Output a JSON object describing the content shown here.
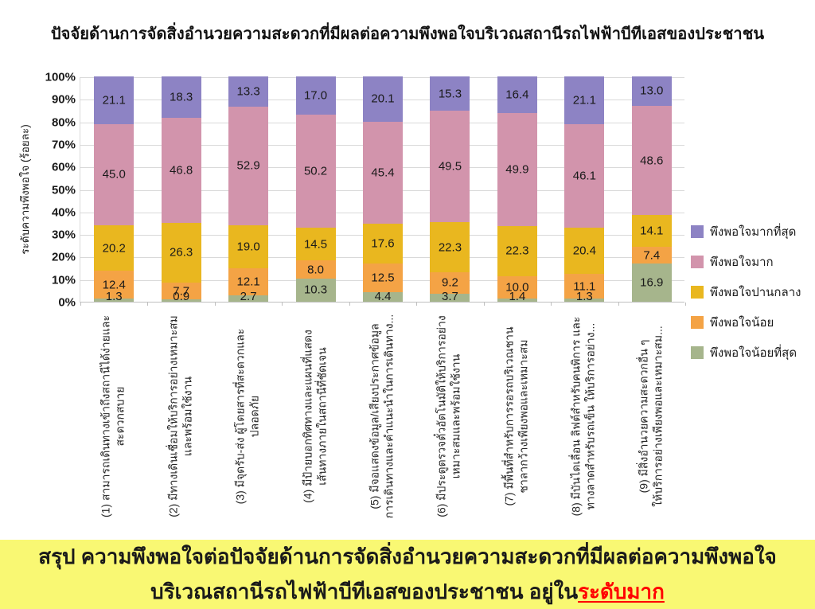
{
  "title": "ปัจจัยด้านการจัดสิ่งอำนวยความสะดวกที่มีผลต่อความพึงพอใจบริเวณสถานีรถไฟฟ้าบีทีเอสของประชาชน",
  "chart_data": {
    "type": "bar",
    "stacked": true,
    "title": "ปัจจัยด้านการจัดสิ่งอำนวยความสะดวกที่มีผลต่อความพึงพอใจบริเวณสถานีรถไฟฟ้าบีทีเอสของประชาชน",
    "ylabel": "ระดับความพึงพอใจ (ร้อยละ)",
    "xlabel": "",
    "ylim": [
      0,
      100
    ],
    "grid": true,
    "legend_position": "right",
    "y_ticks": [
      "100%",
      "90%",
      "80%",
      "70%",
      "60%",
      "50%",
      "40%",
      "30%",
      "20%",
      "10%",
      "0%"
    ],
    "categories": [
      "(1) สามารถเดินทางเข้าถึงสถานีได้ง่ายและ\nสะดวกสบาย",
      "(2) มีทางเดินเชื่อมให้บริการอย่างเหมาะสม\nและพร้อมใช้งาน",
      "(3) มีจุดรับ-ส่ง ผู้โดยสารที่สะดวกและ\nปลอดภัย",
      "(4) มีป้ายบอกทิศทางและแผนที่แสดง\nเส้นทางภายในสถานีที่ชัดเจน",
      "(5) มีจอแสดงข้อมูล/เสียงประกาศข้อมูล\nการเดินทางและคำแนะนำในการเดินทาง...",
      "(6) มีประตูตรวจตั๋วอัตโนมัติให้บริการอย่าง\nเหมาะสมและพร้อมใช้งาน",
      "(7) มีพื้นที่สำหรับการรอรถบริเวณชาน\nชาลากว้างเพียงพอและเหมาะสม",
      "(8) มีบันไดเลื่อน ลิฟต์สำหรับคนพิการ และ\nทางลาดสำหรับรถเข็น ให้บริการอย่าง...",
      "(9) มีสิ่งอำนวยความสะดวกอื่น ๆ\nให้บริการอย่างเพียงพอและเหมาะสม..."
    ],
    "series": [
      {
        "name": "พึงพอใจมากที่สุด",
        "color": "#8d83c4",
        "values": [
          21.1,
          18.3,
          13.3,
          17.0,
          20.1,
          15.3,
          16.4,
          21.1,
          13.0
        ]
      },
      {
        "name": "พึงพอใจมาก",
        "color": "#d294ac",
        "values": [
          45.0,
          46.8,
          52.9,
          50.2,
          45.4,
          49.5,
          49.9,
          46.1,
          48.6
        ]
      },
      {
        "name": "พึงพอใจปานกลาง",
        "color": "#e9b71f",
        "values": [
          20.2,
          26.3,
          19.0,
          14.5,
          17.6,
          22.3,
          22.3,
          20.4,
          14.1
        ]
      },
      {
        "name": "พึงพอใจน้อย",
        "color": "#f4a345",
        "values": [
          12.4,
          7.7,
          12.1,
          8.0,
          12.5,
          9.2,
          10.0,
          11.1,
          7.4
        ]
      },
      {
        "name": "พึงพอใจน้อยที่สุด",
        "color": "#a6b58c",
        "values": [
          1.3,
          0.9,
          2.7,
          10.3,
          4.4,
          3.7,
          1.4,
          1.3,
          16.9
        ]
      }
    ],
    "colors": {
      "gridline": "#d9d9d9",
      "axis": "#bfbfbf"
    }
  },
  "banner": {
    "background": "#f9f873",
    "highlight_color": "#ff0000",
    "line1": "สรุป ความพึงพอใจต่อปัจจัยด้านการจัดสิ่งอำนวยความสะดวกที่มีผลต่อความพึงพอใจ",
    "line2_prefix": "บริเวณสถานีรถไฟฟ้าบีทีเอสของประชาชน อยู่ใน",
    "line2_highlight": "ระดับมาก"
  }
}
